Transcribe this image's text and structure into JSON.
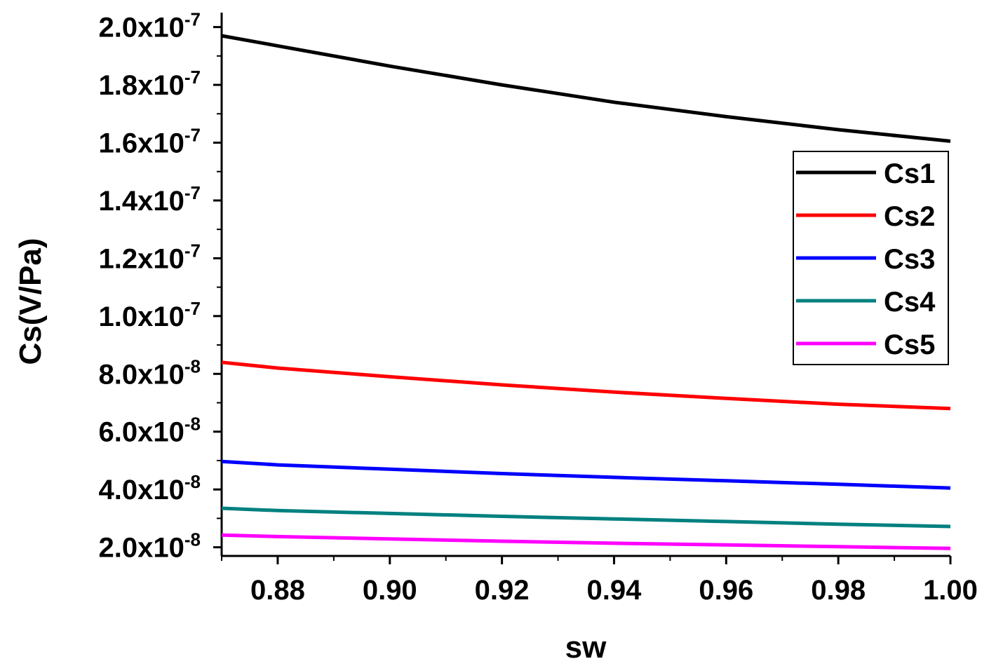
{
  "chart_data": {
    "type": "line",
    "xlabel": "sw",
    "ylabel": "Cs(V/Pa)",
    "xlim": [
      0.87,
      1.0
    ],
    "ylim": [
      1.7e-08,
      2.05e-07
    ],
    "x_ticks": [
      {
        "value": 0.88,
        "label": "0.88"
      },
      {
        "value": 0.9,
        "label": "0.90"
      },
      {
        "value": 0.92,
        "label": "0.92"
      },
      {
        "value": 0.94,
        "label": "0.94"
      },
      {
        "value": 0.96,
        "label": "0.96"
      },
      {
        "value": 0.98,
        "label": "0.98"
      },
      {
        "value": 1.0,
        "label": "1.00"
      }
    ],
    "y_ticks": [
      {
        "value": 2e-08,
        "mantissa": "2.0x10",
        "exponent": "-8"
      },
      {
        "value": 4e-08,
        "mantissa": "4.0x10",
        "exponent": "-8"
      },
      {
        "value": 6e-08,
        "mantissa": "6.0x10",
        "exponent": "-8"
      },
      {
        "value": 8e-08,
        "mantissa": "8.0x10",
        "exponent": "-8"
      },
      {
        "value": 1e-07,
        "mantissa": "1.0x10",
        "exponent": "-7"
      },
      {
        "value": 1.2e-07,
        "mantissa": "1.2x10",
        "exponent": "-7"
      },
      {
        "value": 1.4e-07,
        "mantissa": "1.4x10",
        "exponent": "-7"
      },
      {
        "value": 1.6e-07,
        "mantissa": "1.6x10",
        "exponent": "-7"
      },
      {
        "value": 1.8e-07,
        "mantissa": "1.8x10",
        "exponent": "-7"
      },
      {
        "value": 2e-07,
        "mantissa": "2.0x10",
        "exponent": "-7"
      }
    ],
    "legend_position": "right",
    "x": [
      0.87,
      0.88,
      0.9,
      0.92,
      0.94,
      0.96,
      0.98,
      1.0
    ],
    "series": [
      {
        "name": "Cs1",
        "color": "#000000",
        "values": [
          1.97e-07,
          1.935e-07,
          1.865e-07,
          1.8e-07,
          1.74e-07,
          1.69e-07,
          1.645e-07,
          1.605e-07
        ]
      },
      {
        "name": "Cs2",
        "color": "#ff0000",
        "values": [
          8.4e-08,
          8.2e-08,
          7.9e-08,
          7.62e-08,
          7.37e-08,
          7.15e-08,
          6.95e-08,
          6.8e-08
        ]
      },
      {
        "name": "Cs3",
        "color": "#0000ff",
        "values": [
          4.97e-08,
          4.85e-08,
          4.7e-08,
          4.55e-08,
          4.42e-08,
          4.3e-08,
          4.18e-08,
          4.05e-08
        ]
      },
      {
        "name": "Cs4",
        "color": "#008080",
        "values": [
          3.35e-08,
          3.27e-08,
          3.17e-08,
          3.07e-08,
          2.98e-08,
          2.89e-08,
          2.8e-08,
          2.72e-08
        ]
      },
      {
        "name": "Cs5",
        "color": "#ff00ff",
        "values": [
          2.42e-08,
          2.37e-08,
          2.29e-08,
          2.21e-08,
          2.14e-08,
          2.08e-08,
          2.02e-08,
          1.96e-08
        ]
      }
    ]
  }
}
